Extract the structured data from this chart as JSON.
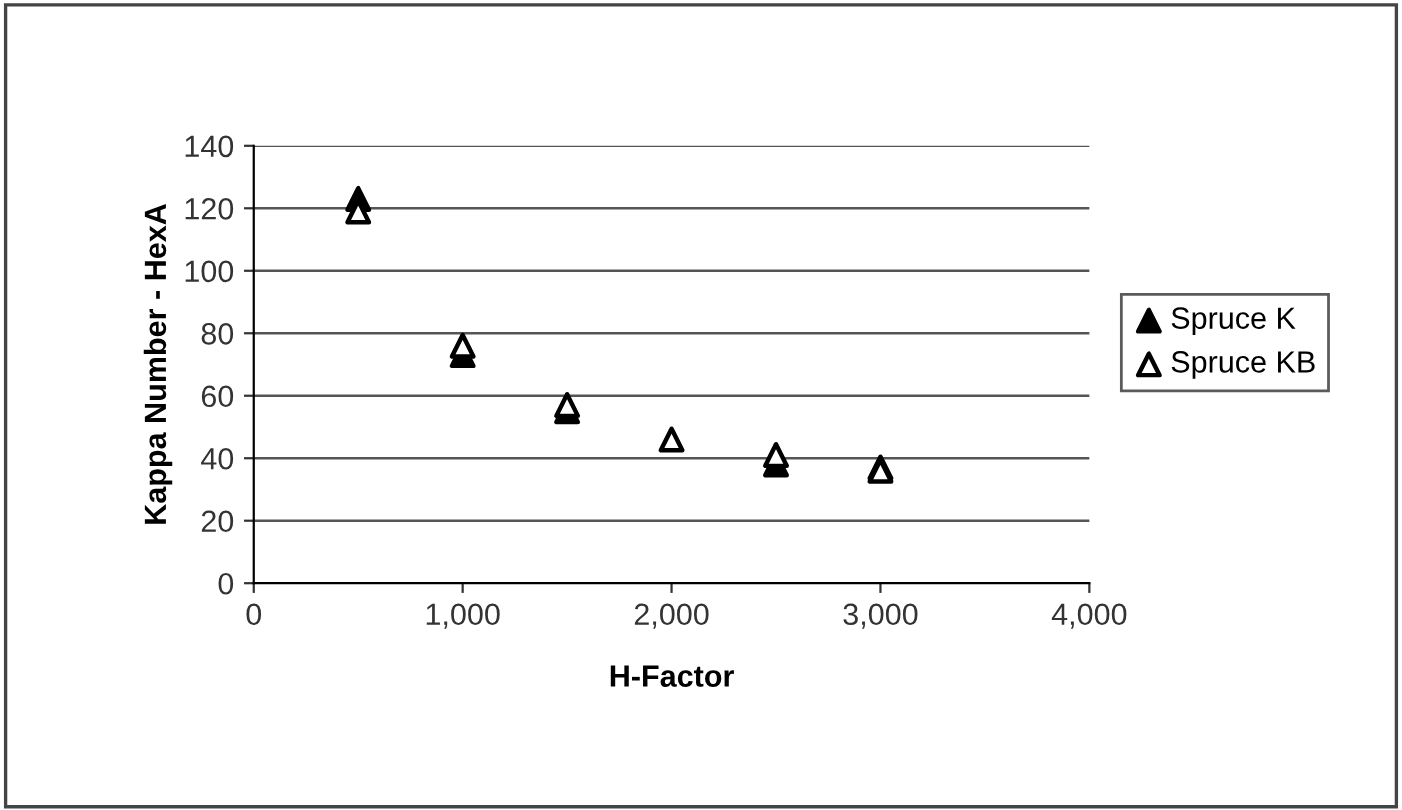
{
  "chart_data": {
    "type": "scatter",
    "xlabel": "H-Factor",
    "ylabel": "Kappa Number - HexA",
    "x": [
      500,
      1000,
      1500,
      2000,
      2500,
      3000
    ],
    "series": [
      {
        "name": "Spruce K",
        "color": "#000000",
        "marker": "triangle",
        "values": [
          123,
          73,
          55,
          null,
          38,
          37
        ]
      },
      {
        "name": "Spruce KB",
        "color": "#000000",
        "marker": "triangle",
        "values": [
          119,
          76,
          57,
          46,
          41,
          36
        ]
      }
    ],
    "xlim": [
      0,
      4000
    ],
    "xticks": [
      0,
      {
        "value": 1000,
        "label": "1,000"
      },
      {
        "value": 2000,
        "label": "2,000"
      },
      {
        "value": 3000,
        "label": "3,000"
      },
      {
        "value": 4000,
        "label": "4,000"
      }
    ],
    "ylim": [
      0,
      140
    ],
    "yticks": [
      0,
      20,
      40,
      60,
      80,
      100,
      120,
      140
    ],
    "grid": "y",
    "legend": "right"
  }
}
